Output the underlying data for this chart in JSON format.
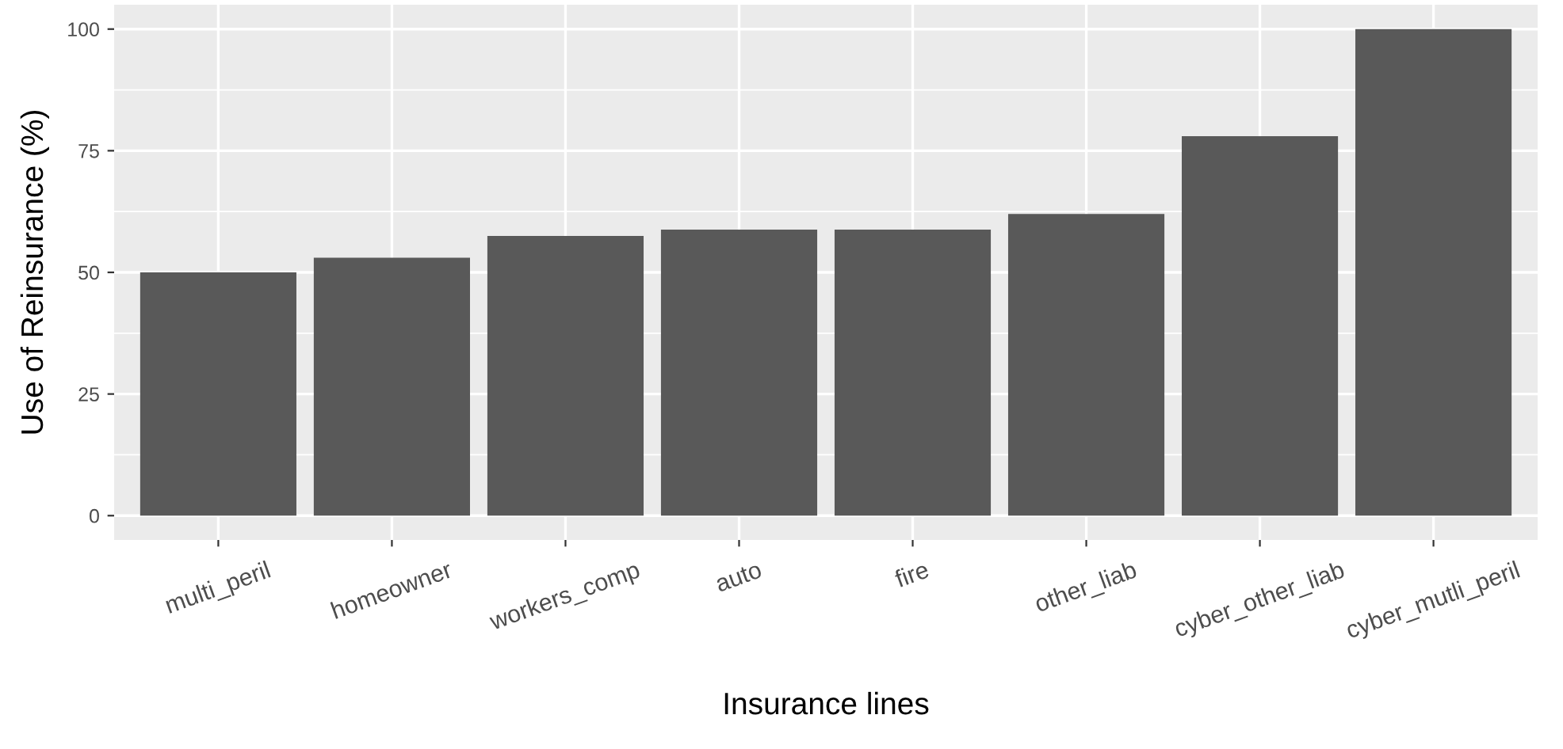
{
  "chart_data": {
    "type": "bar",
    "xlabel": "Insurance lines",
    "ylabel": "Use of Reinsurance (%)",
    "categories": [
      "multi_peril",
      "homeowner",
      "workers_comp",
      "auto",
      "fire",
      "other_liab",
      "cyber_other_liab",
      "cyber_mutli_peril"
    ],
    "values": [
      50,
      53,
      57.5,
      58.8,
      58.8,
      62,
      78,
      100
    ],
    "color": "#595959",
    "ylim": [
      -5,
      105
    ],
    "yticks": [
      0,
      25,
      50,
      75,
      100
    ],
    "grid": true
  }
}
